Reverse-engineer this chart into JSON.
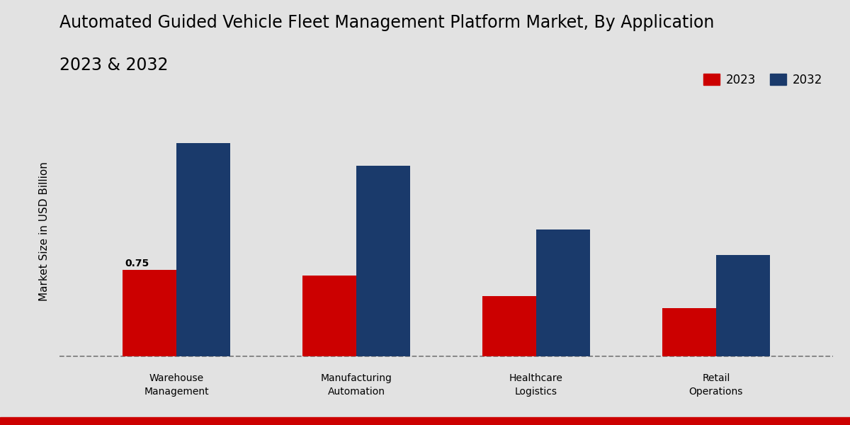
{
  "title_line1": "Automated Guided Vehicle Fleet Management Platform Market, By Application",
  "title_line2": "2023 & 2032",
  "ylabel": "Market Size in USD Billion",
  "categories": [
    "Warehouse\nManagement",
    "Manufacturing\nAutomation",
    "Healthcare\nLogistics",
    "Retail\nOperations"
  ],
  "values_2023": [
    0.75,
    0.7,
    0.52,
    0.42
  ],
  "values_2032": [
    1.85,
    1.65,
    1.1,
    0.88
  ],
  "color_2023": "#cc0000",
  "color_2032": "#1a3a6b",
  "background_color": "#e2e2e2",
  "annotation_value": "0.75",
  "legend_labels": [
    "2023",
    "2032"
  ],
  "bar_width": 0.3,
  "title_fontsize": 17,
  "label_fontsize": 10,
  "ylabel_fontsize": 11,
  "bottom_bar_color": "#cc0000",
  "bottom_bar_height": 0.018
}
